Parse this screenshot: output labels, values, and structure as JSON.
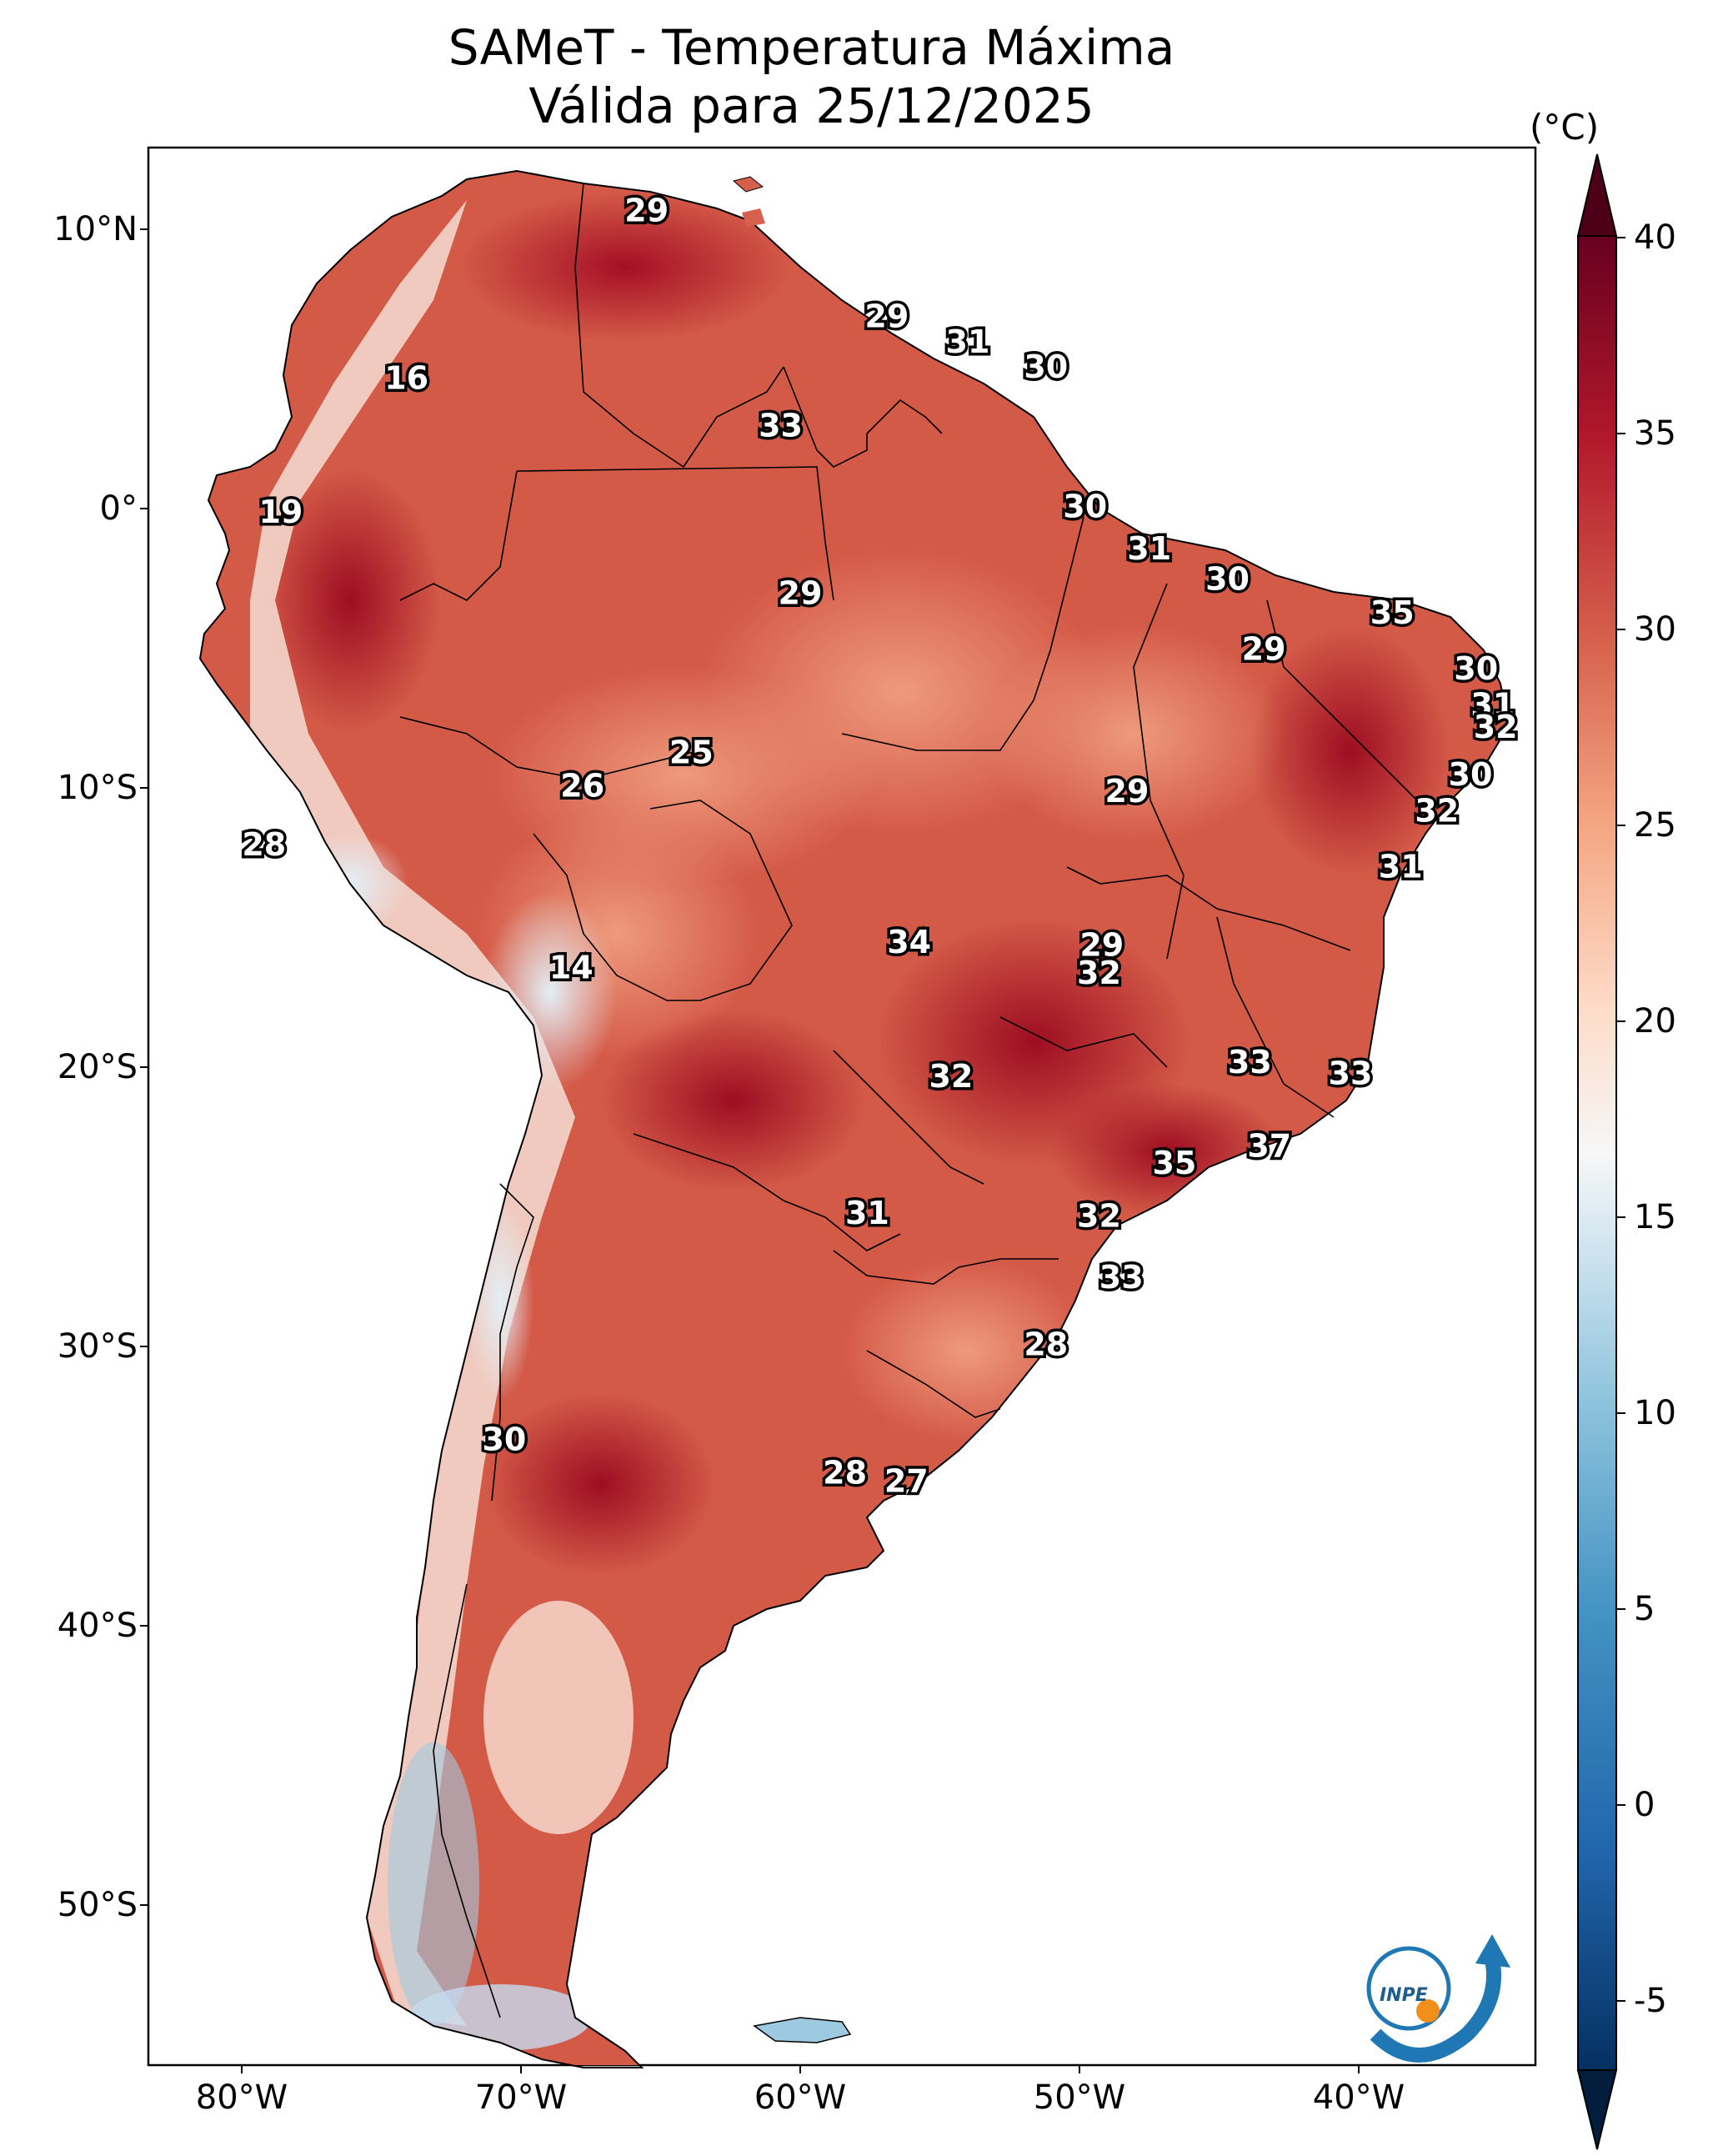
{
  "title": {
    "line1": "SAMeT - Temperatura Máxima",
    "line2": "Válida para 25/12/2025"
  },
  "axes": {
    "lat_ticks": [
      "10°N",
      "0°",
      "10°S",
      "20°S",
      "30°S",
      "40°S",
      "50°S"
    ],
    "lon_ticks": [
      "80°W",
      "70°W",
      "60°W",
      "50°W",
      "40°W"
    ]
  },
  "colorbar": {
    "unit": "(°C)",
    "ticks": [
      "40",
      "35",
      "30",
      "25",
      "20",
      "15",
      "10",
      "5",
      "0",
      "-5"
    ],
    "range": [
      -5,
      40
    ],
    "colors": {
      "max": "#67001f",
      "hot": "#b2182b",
      "warm": "#d6604d",
      "mild": "#f4a582",
      "neutral": "#f7f7f7",
      "cool": "#d1e5f0",
      "cold": "#4393c3",
      "min": "#053061"
    }
  },
  "map_labels": [
    {
      "value": "29",
      "lon": -65.5,
      "lat": 10.6
    },
    {
      "value": "16",
      "lon": -74.1,
      "lat": 4.6
    },
    {
      "value": "29",
      "lon": -56.9,
      "lat": 6.8
    },
    {
      "value": "31",
      "lon": -54.0,
      "lat": 5.9
    },
    {
      "value": "30",
      "lon": -51.2,
      "lat": 5.0
    },
    {
      "value": "33",
      "lon": -60.7,
      "lat": 2.9
    },
    {
      "value": "19",
      "lon": -78.6,
      "lat": -0.2
    },
    {
      "value": "30",
      "lon": -49.8,
      "lat": 0.0
    },
    {
      "value": "31",
      "lon": -47.5,
      "lat": -1.5
    },
    {
      "value": "29",
      "lon": -60.0,
      "lat": -3.1
    },
    {
      "value": "30",
      "lon": -44.7,
      "lat": -2.6
    },
    {
      "value": "35",
      "lon": -38.8,
      "lat": -3.8
    },
    {
      "value": "29",
      "lon": -43.4,
      "lat": -5.1
    },
    {
      "value": "30",
      "lon": -35.8,
      "lat": -5.8
    },
    {
      "value": "31",
      "lon": -35.2,
      "lat": -7.1
    },
    {
      "value": "32",
      "lon": -35.1,
      "lat": -7.9
    },
    {
      "value": "25",
      "lon": -63.9,
      "lat": -8.8
    },
    {
      "value": "26",
      "lon": -67.8,
      "lat": -10.0
    },
    {
      "value": "29",
      "lon": -48.3,
      "lat": -10.2
    },
    {
      "value": "30",
      "lon": -36.0,
      "lat": -9.6
    },
    {
      "value": "32",
      "lon": -37.2,
      "lat": -10.9
    },
    {
      "value": "28",
      "lon": -79.2,
      "lat": -12.1
    },
    {
      "value": "31",
      "lon": -38.5,
      "lat": -12.9
    },
    {
      "value": "34",
      "lon": -56.1,
      "lat": -15.6
    },
    {
      "value": "29",
      "lon": -49.2,
      "lat": -15.7
    },
    {
      "value": "32",
      "lon": -49.3,
      "lat": -16.7
    },
    {
      "value": "14",
      "lon": -68.2,
      "lat": -16.5
    },
    {
      "value": "33",
      "lon": -43.9,
      "lat": -19.9
    },
    {
      "value": "33",
      "lon": -40.3,
      "lat": -20.3
    },
    {
      "value": "32",
      "lon": -54.6,
      "lat": -20.4
    },
    {
      "value": "37",
      "lon": -43.2,
      "lat": -22.9
    },
    {
      "value": "35",
      "lon": -46.6,
      "lat": -23.5
    },
    {
      "value": "31",
      "lon": -57.6,
      "lat": -25.3
    },
    {
      "value": "32",
      "lon": -49.3,
      "lat": -25.4
    },
    {
      "value": "33",
      "lon": -48.5,
      "lat": -27.6
    },
    {
      "value": "28",
      "lon": -51.2,
      "lat": -30.0
    },
    {
      "value": "30",
      "lon": -70.6,
      "lat": -33.4
    },
    {
      "value": "28",
      "lon": -58.4,
      "lat": -34.6
    },
    {
      "value": "27",
      "lon": -56.2,
      "lat": -34.9
    }
  ],
  "logo": {
    "text": "INPE"
  }
}
